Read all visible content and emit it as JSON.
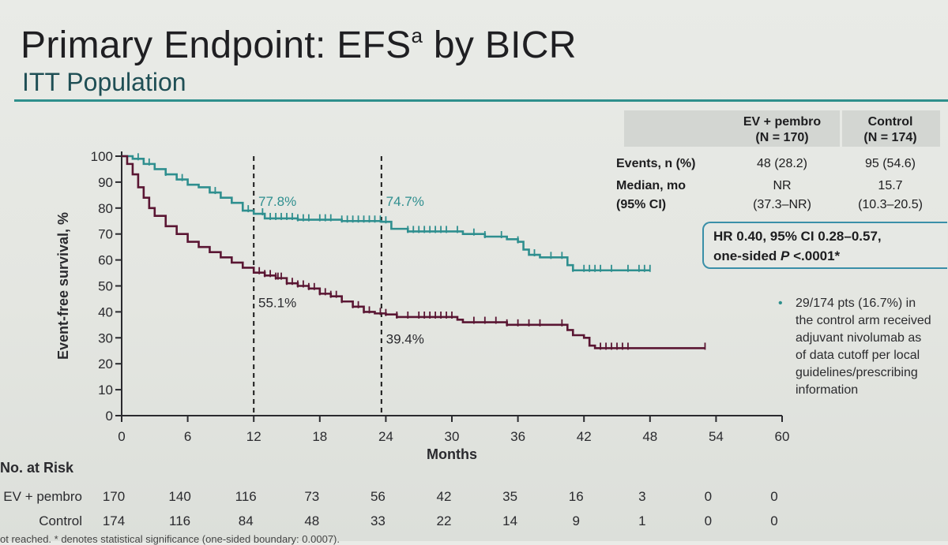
{
  "slide": {
    "title_main": "Primary Endpoint: EFS",
    "title_sup": "a",
    "title_end": " by BICR",
    "subtitle": "ITT Population"
  },
  "colors": {
    "ev_pembro": "#2f8f8f",
    "control": "#5a1633",
    "accent": "#2e8f8c",
    "box_border": "#3a8fa8"
  },
  "chart_data": {
    "type": "line",
    "subtype": "kaplan-meier",
    "ylabel": "Event-free survival, %",
    "xlabel": "Months",
    "xlim": [
      0,
      60
    ],
    "ylim": [
      0,
      100
    ],
    "x_ticks": [
      "0",
      "6",
      "12",
      "18",
      "24",
      "30",
      "36",
      "42",
      "48",
      "54",
      "60"
    ],
    "y_ticks": [
      "0",
      "10",
      "20",
      "30",
      "40",
      "50",
      "60",
      "70",
      "80",
      "90",
      "100"
    ],
    "landmarks": [
      12.0,
      23.6
    ],
    "annotations": [
      {
        "text": "77.8%",
        "x": 12.2,
        "y": 79
      },
      {
        "text": "74.7%",
        "x": 23.8,
        "y": 79
      },
      {
        "text": "55.1%",
        "x": 12.2,
        "y": 40
      },
      {
        "text": "39.4%",
        "x": 23.8,
        "y": 26
      }
    ],
    "series": [
      {
        "name": "EV + pembro",
        "points": [
          [
            0,
            100
          ],
          [
            1,
            99
          ],
          [
            2,
            97
          ],
          [
            3,
            95
          ],
          [
            4,
            93
          ],
          [
            5,
            91
          ],
          [
            6,
            89
          ],
          [
            7,
            88
          ],
          [
            8,
            86
          ],
          [
            9,
            84
          ],
          [
            10,
            82
          ],
          [
            11,
            79
          ],
          [
            12,
            77.8
          ],
          [
            13,
            76
          ],
          [
            16,
            75.5
          ],
          [
            20,
            75
          ],
          [
            23.6,
            74.7
          ],
          [
            24.5,
            72
          ],
          [
            26,
            71
          ],
          [
            30,
            71
          ],
          [
            31,
            70
          ],
          [
            33,
            69
          ],
          [
            35,
            68
          ],
          [
            36,
            67
          ],
          [
            36.5,
            64
          ],
          [
            37,
            62
          ],
          [
            38,
            61
          ],
          [
            40,
            61
          ],
          [
            40.5,
            58
          ],
          [
            41,
            56
          ],
          [
            44,
            56
          ],
          [
            48,
            56
          ]
        ],
        "censor_x": [
          1.5,
          2.5,
          4,
          5.5,
          8.5,
          11.5,
          12.8,
          13.5,
          14,
          14.5,
          15,
          15.5,
          16,
          16.5,
          17,
          18,
          18.5,
          19,
          20,
          20.5,
          21,
          21.5,
          22,
          22.5,
          23,
          23.5,
          24,
          26,
          26.5,
          27,
          27.5,
          28,
          28.5,
          29,
          29.5,
          30.5,
          32,
          33,
          34.5,
          36,
          37.5,
          39,
          40,
          41,
          42,
          42.5,
          43,
          43.5,
          44.5,
          46,
          47,
          47.5,
          48
        ]
      },
      {
        "name": "Control",
        "points": [
          [
            0,
            100
          ],
          [
            0.5,
            97
          ],
          [
            1,
            93
          ],
          [
            1.5,
            88
          ],
          [
            2,
            84
          ],
          [
            2.5,
            80
          ],
          [
            3,
            77
          ],
          [
            4,
            73
          ],
          [
            5,
            70
          ],
          [
            6,
            67
          ],
          [
            7,
            65
          ],
          [
            8,
            63
          ],
          [
            9,
            61
          ],
          [
            10,
            59
          ],
          [
            11,
            57
          ],
          [
            12,
            55.1
          ],
          [
            13,
            54
          ],
          [
            14,
            53
          ],
          [
            15,
            51
          ],
          [
            16,
            50
          ],
          [
            17,
            49
          ],
          [
            18,
            47
          ],
          [
            19,
            46
          ],
          [
            20,
            44
          ],
          [
            21,
            42
          ],
          [
            22,
            40
          ],
          [
            23,
            39.4
          ],
          [
            24,
            39
          ],
          [
            25,
            38
          ],
          [
            28,
            38
          ],
          [
            30.5,
            37
          ],
          [
            31,
            36
          ],
          [
            34,
            36
          ],
          [
            35,
            35
          ],
          [
            40,
            35
          ],
          [
            40.5,
            33
          ],
          [
            41,
            31
          ],
          [
            42,
            30
          ],
          [
            42.5,
            27
          ],
          [
            43,
            26
          ],
          [
            45,
            26
          ],
          [
            53,
            26
          ]
        ],
        "censor_x": [
          12.5,
          13,
          13.5,
          14,
          14.2,
          14.5,
          15,
          15.5,
          16,
          16.5,
          17,
          17.5,
          18,
          18.5,
          19,
          19.5,
          20,
          21,
          21.5,
          22,
          22.5,
          23.5,
          24,
          25,
          26,
          27,
          27.5,
          28,
          28.5,
          29,
          29.5,
          30,
          32,
          33,
          34,
          35,
          36,
          37,
          38,
          40,
          43.5,
          44,
          44.5,
          45,
          45.5,
          46,
          53
        ]
      }
    ],
    "at_risk": {
      "title": "No. at Risk",
      "rows": [
        {
          "label": "EV + pembro",
          "values": [
            "170",
            "140",
            "116",
            "73",
            "56",
            "42",
            "35",
            "16",
            "3",
            "0",
            "0"
          ]
        },
        {
          "label": "Control",
          "values": [
            "174",
            "116",
            "84",
            "48",
            "33",
            "22",
            "14",
            "9",
            "1",
            "0",
            "0"
          ]
        }
      ]
    }
  },
  "stats_table": {
    "col1_line1": "EV + pembro",
    "col1_line2": "(N = 170)",
    "col2_line1": "Control",
    "col2_line2": "(N = 174)",
    "row1_label": "Events, n (%)",
    "row1_c1": "48 (28.2)",
    "row1_c2": "95 (54.6)",
    "row2_label": "Median, mo",
    "row2_c1": "NR",
    "row2_c2": "15.7",
    "row3_label": "(95% CI)",
    "row3_c1": "(37.3–NR)",
    "row3_c2": "(10.3–20.5)"
  },
  "hr_box": {
    "line1": "HR 0.40, 95% CI 0.28–0.57,",
    "line2_prefix": "one-sided ",
    "line2_p": "P",
    "line2_suffix": " <.0001*"
  },
  "bullet": {
    "text": "29/174 pts (16.7%) in\nthe control arm received\nadjuvant nivolumab as\nof data cutoff per local\nguidelines/prescribing\ninformation"
  },
  "footnote": {
    "text": "ot reached. * denotes statistical significance (one-sided boundary: 0.0007)."
  }
}
